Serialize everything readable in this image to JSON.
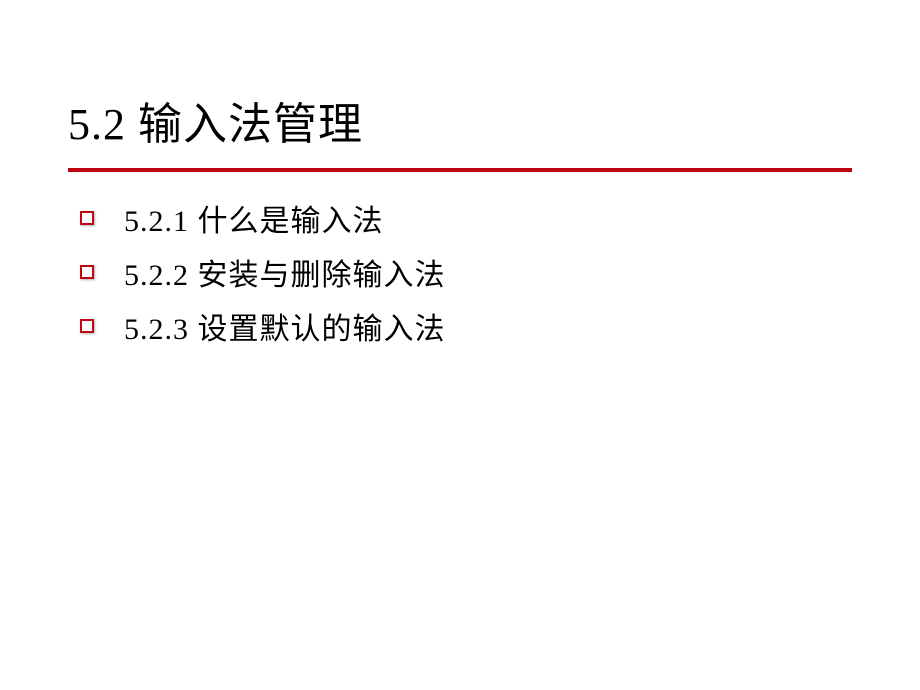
{
  "slide": {
    "title": "5.2  输入法管理",
    "accent_color": "#be0712",
    "background_color": "#ffffff",
    "text_color": "#000000",
    "title_fontsize": 44,
    "item_fontsize": 30,
    "bullets": [
      {
        "text": "5.2.1  什么是输入法"
      },
      {
        "text": "5.2.2  安装与删除输入法"
      },
      {
        "text": "5.2.3  设置默认的输入法"
      }
    ]
  }
}
